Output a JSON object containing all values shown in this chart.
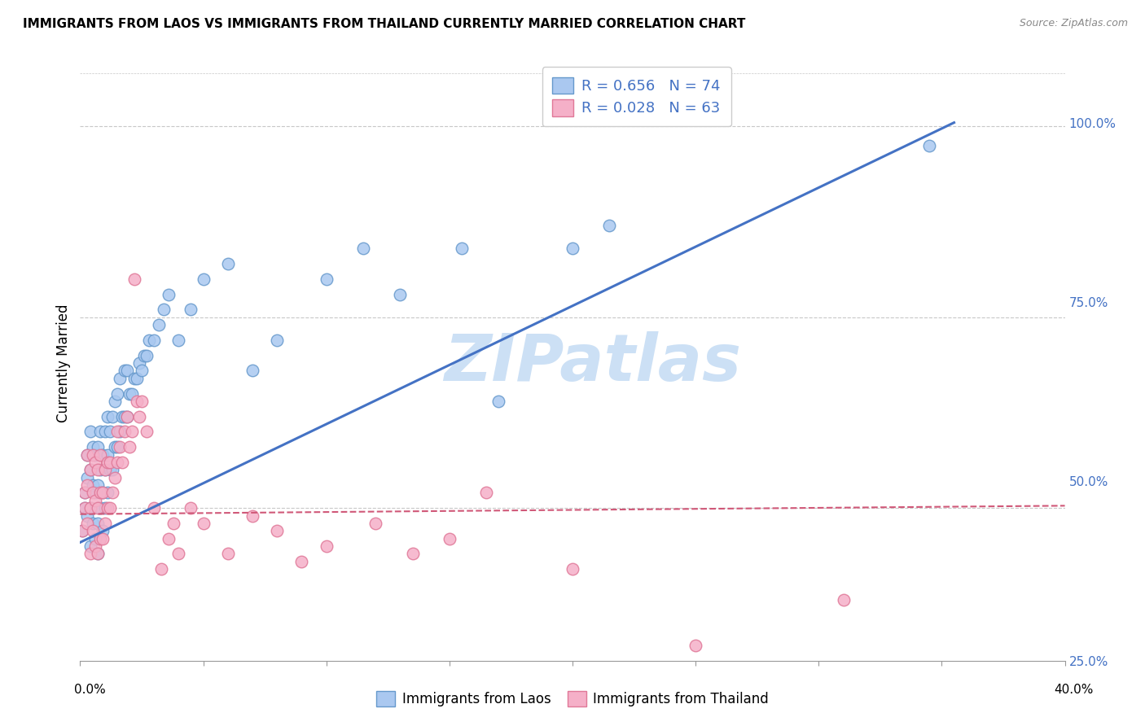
{
  "title": "IMMIGRANTS FROM LAOS VS IMMIGRANTS FROM THAILAND CURRENTLY MARRIED CORRELATION CHART",
  "source": "Source: ZipAtlas.com",
  "ylabel": "Currently Married",
  "xlim": [
    0.0,
    0.4
  ],
  "ylim": [
    0.3,
    1.08
  ],
  "yticks": [
    0.5,
    0.75,
    1.0
  ],
  "ytick_right_labels": [
    "50.0%",
    "75.0%",
    "100.0%"
  ],
  "ytick_right_extra": 0.25,
  "color_laos_fill": "#aac8f0",
  "color_laos_edge": "#6699cc",
  "color_thailand_fill": "#f5b0c8",
  "color_thailand_edge": "#e07898",
  "color_line_laos": "#4472c4",
  "color_line_thailand": "#d05878",
  "color_grid": "#c8c8c8",
  "watermark_text": "ZIPatlas",
  "watermark_color": "#cce0f5",
  "label_laos": "Immigrants from Laos",
  "label_thailand": "Immigrants from Thailand",
  "legend_text1": "R = 0.656   N = 74",
  "legend_text2": "R = 0.028   N = 63",
  "line_laos_x0": 0.0,
  "line_laos_y0": 0.455,
  "line_laos_x1": 0.355,
  "line_laos_y1": 1.005,
  "line_thailand_x0": 0.0,
  "line_thailand_y0": 0.492,
  "line_thailand_x1": 0.4,
  "line_thailand_y1": 0.503,
  "laos_x": [
    0.001,
    0.002,
    0.002,
    0.003,
    0.003,
    0.003,
    0.004,
    0.004,
    0.004,
    0.004,
    0.005,
    0.005,
    0.005,
    0.006,
    0.006,
    0.006,
    0.007,
    0.007,
    0.007,
    0.007,
    0.008,
    0.008,
    0.008,
    0.009,
    0.009,
    0.009,
    0.01,
    0.01,
    0.01,
    0.011,
    0.011,
    0.011,
    0.012,
    0.012,
    0.013,
    0.013,
    0.014,
    0.014,
    0.015,
    0.015,
    0.016,
    0.016,
    0.017,
    0.018,
    0.018,
    0.019,
    0.019,
    0.02,
    0.021,
    0.022,
    0.023,
    0.024,
    0.025,
    0.026,
    0.027,
    0.028,
    0.03,
    0.032,
    0.034,
    0.036,
    0.04,
    0.045,
    0.05,
    0.06,
    0.07,
    0.08,
    0.1,
    0.115,
    0.13,
    0.155,
    0.17,
    0.2,
    0.215,
    0.345
  ],
  "laos_y": [
    0.47,
    0.5,
    0.52,
    0.49,
    0.54,
    0.57,
    0.45,
    0.5,
    0.55,
    0.6,
    0.48,
    0.53,
    0.58,
    0.46,
    0.52,
    0.57,
    0.44,
    0.48,
    0.53,
    0.58,
    0.5,
    0.55,
    0.6,
    0.47,
    0.52,
    0.57,
    0.5,
    0.55,
    0.6,
    0.52,
    0.57,
    0.62,
    0.55,
    0.6,
    0.55,
    0.62,
    0.58,
    0.64,
    0.58,
    0.65,
    0.6,
    0.67,
    0.62,
    0.62,
    0.68,
    0.62,
    0.68,
    0.65,
    0.65,
    0.67,
    0.67,
    0.69,
    0.68,
    0.7,
    0.7,
    0.72,
    0.72,
    0.74,
    0.76,
    0.78,
    0.72,
    0.76,
    0.8,
    0.82,
    0.68,
    0.72,
    0.8,
    0.84,
    0.78,
    0.84,
    0.64,
    0.84,
    0.87,
    0.975
  ],
  "thailand_x": [
    0.001,
    0.002,
    0.002,
    0.003,
    0.003,
    0.003,
    0.004,
    0.004,
    0.004,
    0.005,
    0.005,
    0.005,
    0.006,
    0.006,
    0.006,
    0.007,
    0.007,
    0.007,
    0.008,
    0.008,
    0.008,
    0.009,
    0.009,
    0.01,
    0.01,
    0.011,
    0.011,
    0.012,
    0.012,
    0.013,
    0.014,
    0.015,
    0.015,
    0.016,
    0.017,
    0.018,
    0.019,
    0.02,
    0.021,
    0.022,
    0.023,
    0.024,
    0.025,
    0.027,
    0.03,
    0.033,
    0.036,
    0.038,
    0.04,
    0.045,
    0.05,
    0.06,
    0.07,
    0.08,
    0.09,
    0.1,
    0.12,
    0.135,
    0.15,
    0.165,
    0.2,
    0.25,
    0.31
  ],
  "thailand_y": [
    0.47,
    0.5,
    0.52,
    0.48,
    0.53,
    0.57,
    0.44,
    0.5,
    0.55,
    0.47,
    0.52,
    0.57,
    0.45,
    0.51,
    0.56,
    0.44,
    0.5,
    0.55,
    0.46,
    0.52,
    0.57,
    0.46,
    0.52,
    0.48,
    0.55,
    0.5,
    0.56,
    0.5,
    0.56,
    0.52,
    0.54,
    0.56,
    0.6,
    0.58,
    0.56,
    0.6,
    0.62,
    0.58,
    0.6,
    0.8,
    0.64,
    0.62,
    0.64,
    0.6,
    0.5,
    0.42,
    0.46,
    0.48,
    0.44,
    0.5,
    0.48,
    0.44,
    0.49,
    0.47,
    0.43,
    0.45,
    0.48,
    0.44,
    0.46,
    0.52,
    0.42,
    0.32,
    0.38
  ]
}
